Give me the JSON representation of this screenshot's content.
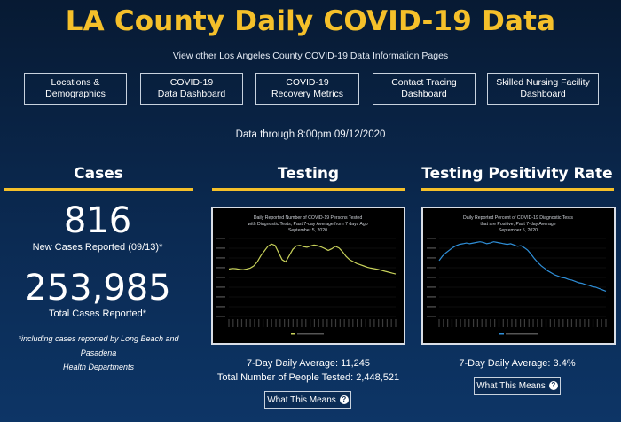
{
  "page": {
    "title": "LA County Daily COVID-19 Data",
    "subtitle": "View other Los Angeles County COVID-19 Data Information Pages",
    "data_through": "Data through 8:00pm 09/12/2020"
  },
  "nav": [
    {
      "line1": "Locations &",
      "line2": "Demographics"
    },
    {
      "line1": "COVID-19",
      "line2": "Data Dashboard"
    },
    {
      "line1": "COVID-19",
      "line2": "Recovery Metrics"
    },
    {
      "line1": "Contact Tracing",
      "line2": "Dashboard"
    },
    {
      "line1": "Skilled Nursing Facility",
      "line2": "Dashboard"
    }
  ],
  "cases": {
    "heading": "Cases",
    "new_cases": "816",
    "new_cases_label": "New Cases Reported (09/13)*",
    "total_cases": "253,985",
    "total_cases_label": "Total Cases Reported*",
    "footnote_line1": "*including cases reported by Long Beach and Pasadena",
    "footnote_line2": "Health Departments"
  },
  "testing": {
    "heading": "Testing",
    "avg_label": "7-Day Daily Average: 11,245",
    "total_label": "Total Number of People Tested: 2,448,521",
    "means_label": "What This Means"
  },
  "positivity": {
    "heading": "Testing Positivity Rate",
    "avg_label": "7-Day Daily Average: 3.4%",
    "means_label": "What This Means"
  },
  "colors": {
    "accent": "#f5c02a",
    "testing_line": "#c7d15a",
    "positivity_line": "#2f8fd8"
  },
  "chart_data": [
    {
      "type": "line",
      "title": "Daily Reported Number of COVID-19 Persons Tested with Diagnostic Tests, Past 7-day Average from 7 days Ago September 5, 2020",
      "series": [
        {
          "values": [
            15200,
            15400,
            15300,
            15100,
            15000,
            15200,
            15500,
            16200,
            17500,
            19500,
            21000,
            22500,
            23200,
            22800,
            20500,
            18200,
            17500,
            19500,
            21500,
            22600,
            22800,
            22400,
            22200,
            22600,
            22900,
            22700,
            22300,
            21800,
            21200,
            21700,
            22500,
            22000,
            20800,
            19300,
            18200,
            17600,
            17000,
            16600,
            16200,
            15800,
            15500,
            15300,
            15100,
            14800,
            14500,
            14200,
            13900,
            13600
          ]
        }
      ],
      "ylim": [
        0,
        25000
      ]
    },
    {
      "type": "line",
      "title": "Daily Reported Percent of COVID-19 Diagnostic Tests that are Positive, Past 7-day Average September 5, 2020",
      "series": [
        {
          "values": [
            8.6,
            9.3,
            9.8,
            10.2,
            10.6,
            10.9,
            11.1,
            11.2,
            11.3,
            11.2,
            11.3,
            11.4,
            11.5,
            11.4,
            11.2,
            11.3,
            11.5,
            11.4,
            11.3,
            11.2,
            11.1,
            11.2,
            11.0,
            10.8,
            10.9,
            10.6,
            10.2,
            9.6,
            8.9,
            8.3,
            7.8,
            7.4,
            7.0,
            6.7,
            6.4,
            6.2,
            6.0,
            5.9,
            5.7,
            5.6,
            5.4,
            5.2,
            5.1,
            4.9,
            4.8,
            4.6,
            4.5,
            4.3,
            4.1,
            3.9
          ]
        }
      ],
      "ylim": [
        0,
        12
      ]
    }
  ]
}
